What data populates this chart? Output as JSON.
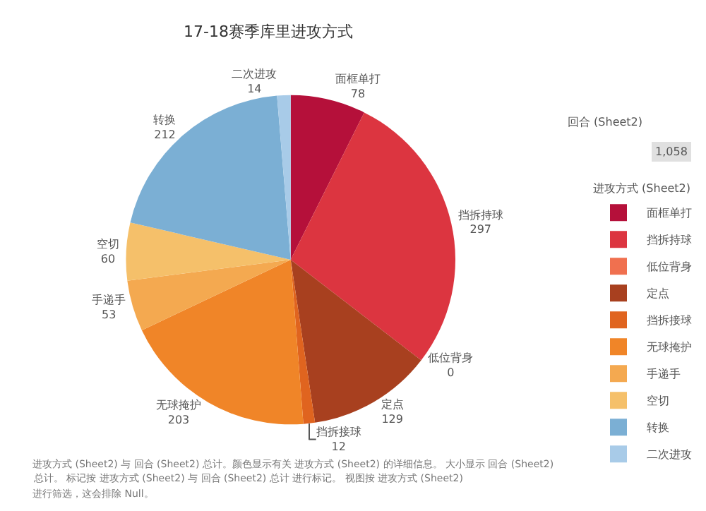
{
  "chart_data": {
    "type": "pie",
    "title": "17-18赛季库里进攻方式",
    "categories": [
      "面框单打",
      "挡拆持球",
      "低位背身",
      "定点",
      "挡拆接球",
      "无球掩护",
      "手递手",
      "空切",
      "转换",
      "二次进攻"
    ],
    "values": [
      78,
      297,
      0,
      129,
      12,
      203,
      53,
      60,
      212,
      14
    ],
    "colors": [
      "#b5103a",
      "#dc3540",
      "#f0704f",
      "#a8401f",
      "#e0641f",
      "#f08528",
      "#f4a950",
      "#f5c06a",
      "#7bafd4",
      "#a8cbe8"
    ],
    "value_labels": [
      "78",
      "297",
      "0",
      "129",
      "12",
      "203",
      "53",
      "60",
      "212",
      "14"
    ],
    "legend": "right",
    "legend_title": "进攻方式 (Sheet2)",
    "annotations": [
      "回合 (Sheet2)",
      "1,058",
      "进攻方式 (Sheet2) 与 回合 (Sheet2) 总计。颜色显示有关 进攻方式 (Sheet2) 的详细信息。 大小显示 回合 (Sheet2)",
      "总计。 标记按 进攻方式 (Sheet2) 与 回合 (Sheet2) 总计 进行标记。 视图按 进攻方式 (Sheet2)",
      "进行筛选，这会排除 Null。"
    ]
  }
}
